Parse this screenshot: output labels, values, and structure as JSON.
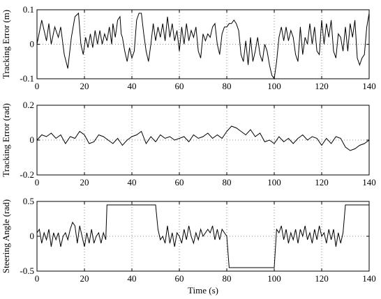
{
  "chart_data": [
    {
      "type": "line",
      "ylabel": "Tracking Error (m)",
      "xlabel": "",
      "xlim": [
        0,
        140
      ],
      "ylim": [
        -0.1,
        0.1
      ],
      "x_ticks": [
        0,
        20,
        40,
        60,
        80,
        100,
        120,
        140
      ],
      "x_tick_labels": [
        "0",
        "20",
        "40",
        "60",
        "80",
        "100",
        "120",
        "140"
      ],
      "y_ticks": [
        -0.1,
        0,
        0.1
      ],
      "y_tick_labels": [
        "-0.1",
        "0",
        "0.1"
      ],
      "grid": "dotted",
      "color": "#000000",
      "series": [
        {
          "x": [
            0,
            2,
            4,
            5,
            6,
            7.5,
            9,
            10,
            11.5,
            13,
            14.5,
            16,
            17.5,
            18.5,
            19.5,
            20.5,
            21.5,
            22.5,
            23.5,
            24.5,
            25.5,
            26.5,
            27.5,
            28.5,
            29.5,
            30.5,
            31.5,
            32,
            33,
            34,
            35,
            35.5,
            36,
            37,
            38,
            39,
            40,
            41,
            42,
            43,
            44,
            45,
            46,
            47,
            48,
            49,
            50,
            51,
            52,
            53,
            54,
            55,
            56,
            57,
            58,
            59,
            60,
            61,
            62,
            63,
            64,
            65,
            66,
            67,
            68,
            69,
            70,
            71,
            72,
            73,
            74,
            75,
            76,
            77,
            78,
            79,
            80,
            81,
            82,
            83,
            84,
            85,
            86,
            87,
            88,
            89,
            90,
            91,
            92,
            93,
            94,
            95,
            96,
            97,
            98,
            99,
            100,
            101,
            102,
            103,
            104,
            105,
            106,
            107,
            108,
            109,
            110,
            111,
            112,
            113,
            114,
            115,
            116,
            117,
            118,
            119,
            120,
            121,
            122,
            123,
            124,
            125,
            126,
            127,
            128,
            129,
            130,
            131,
            132,
            133,
            134,
            135,
            136,
            137,
            138,
            139,
            140
          ],
          "y": [
            0,
            0.07,
            0.01,
            0.06,
            0,
            0.05,
            0.02,
            0.05,
            -0.03,
            -0.07,
            0.02,
            0.08,
            0.09,
            0,
            -0.03,
            0.02,
            -0.01,
            0.03,
            -0.01,
            0.04,
            0,
            0.04,
            0,
            0.03,
            0.01,
            0.05,
            0,
            0.06,
            0.02,
            0.07,
            0.08,
            0.03,
            0.02,
            -0.02,
            -0.05,
            -0.01,
            -0.04,
            -0.02,
            0.07,
            0.09,
            0.09,
            0.03,
            -0.02,
            -0.05,
            0,
            0.06,
            0.01,
            0.05,
            0.02,
            0.06,
            0.01,
            0.08,
            0.02,
            0.06,
            0.01,
            0.04,
            -0.02,
            0.05,
            0,
            0.06,
            0.01,
            0.04,
            0.02,
            0.05,
            -0.02,
            -0.04,
            0.03,
            0.01,
            0.03,
            0.02,
            0.05,
            0.06,
            0,
            -0.03,
            0.03,
            0.05,
            0.05,
            0.06,
            0.06,
            0.07,
            0.06,
            0.04,
            -0.03,
            -0.05,
            0.01,
            -0.06,
            0.02,
            -0.05,
            -0.02,
            0.02,
            -0.03,
            -0.05,
            0,
            -0.02,
            -0.06,
            -0.09,
            -0.1,
            -0.05,
            0.02,
            0.05,
            0.01,
            0.05,
            0.01,
            0.04,
            0.02,
            -0.03,
            -0.05,
            0.05,
            -0.03,
            0.02,
            0,
            0.06,
            0,
            0.05,
            -0.02,
            -0.03,
            0.07,
            0,
            0.06,
            0.02,
            0.07,
            -0.02,
            -0.04,
            0.03,
            0.02,
            -0.02,
            0.05,
            -0.02,
            0.06,
            0.02,
            0.07,
            -0.04,
            -0.06,
            -0.04,
            -0.03,
            0.05,
            0.09
          ]
        }
      ]
    },
    {
      "type": "line",
      "ylabel": "Tracking Error (rad)",
      "xlabel": "",
      "xlim": [
        0,
        140
      ],
      "ylim": [
        -0.2,
        0.2
      ],
      "x_ticks": [
        0,
        20,
        40,
        60,
        80,
        100,
        120,
        140
      ],
      "x_tick_labels": [
        "0",
        "20",
        "40",
        "60",
        "80",
        "100",
        "120",
        "140"
      ],
      "y_ticks": [
        -0.2,
        0,
        0.2
      ],
      "y_tick_labels": [
        "-0.2",
        "0",
        "0.2"
      ],
      "grid": "dotted",
      "color": "#000000",
      "series": [
        {
          "x": [
            0,
            2,
            4,
            6,
            8,
            10,
            12,
            14,
            16,
            18,
            20,
            22,
            24,
            26,
            28,
            30,
            32,
            34,
            36,
            38,
            40,
            42,
            44,
            46,
            48,
            50,
            52,
            54,
            56,
            58,
            60,
            62,
            64,
            66,
            68,
            70,
            72,
            74,
            76,
            78,
            80,
            82,
            84,
            86,
            88,
            90,
            92,
            94,
            96,
            98,
            100,
            102,
            104,
            106,
            108,
            110,
            112,
            114,
            116,
            118,
            120,
            122,
            124,
            126,
            128,
            130,
            132,
            134,
            136,
            138,
            140
          ],
          "y": [
            0,
            0.03,
            0.02,
            0.04,
            0.01,
            0.03,
            -0.02,
            0.02,
            0.01,
            0.05,
            0.03,
            -0.02,
            -0.01,
            0.03,
            0.02,
            0,
            -0.02,
            0.01,
            -0.03,
            0,
            0.02,
            0.03,
            0.05,
            -0.02,
            0.02,
            -0.01,
            0.03,
            0.01,
            0.02,
            0,
            0.01,
            0.02,
            -0.01,
            0.03,
            0.01,
            0.02,
            0.04,
            0.01,
            0.03,
            0.01,
            0.05,
            0.08,
            0.07,
            0.05,
            0.03,
            0.06,
            0.02,
            0.04,
            -0.01,
            0,
            -0.02,
            0.02,
            -0.01,
            0.01,
            -0.02,
            0.01,
            0.03,
            0,
            0.02,
            0.01,
            -0.03,
            0.01,
            -0.02,
            0.02,
            0.01,
            -0.04,
            -0.06,
            -0.05,
            -0.03,
            -0.02,
            0
          ]
        }
      ]
    },
    {
      "type": "line",
      "ylabel": "Steering Angle (rad)",
      "xlabel": "Time (s)",
      "xlim": [
        0,
        140
      ],
      "ylim": [
        -0.5,
        0.5
      ],
      "x_ticks": [
        0,
        20,
        40,
        60,
        80,
        100,
        120,
        140
      ],
      "x_tick_labels": [
        "0",
        "20",
        "40",
        "60",
        "80",
        "100",
        "120",
        "140"
      ],
      "y_ticks": [
        -0.5,
        0,
        0.5
      ],
      "y_tick_labels": [
        "-0.5",
        "0",
        "0.5"
      ],
      "grid": "dotted",
      "color": "#000000",
      "series": [
        {
          "x": [
            0,
            1,
            2,
            3,
            4,
            5,
            6,
            7,
            8,
            9,
            10,
            11,
            12,
            13,
            14,
            15,
            16,
            17,
            18,
            19,
            20,
            21,
            22,
            23,
            24,
            25,
            26,
            27,
            28,
            29,
            29.5,
            30,
            35,
            40,
            45,
            50,
            51,
            52,
            53,
            54,
            55,
            56,
            57,
            58,
            59,
            60,
            61,
            62,
            63,
            64,
            65,
            66,
            67,
            68,
            69,
            70,
            71,
            72,
            73,
            74,
            75,
            76,
            77,
            78,
            79,
            80,
            81,
            85,
            90,
            95,
            100,
            101,
            102,
            103,
            104,
            105,
            106,
            107,
            108,
            109,
            110,
            111,
            112,
            113,
            114,
            115,
            116,
            117,
            118,
            119,
            120,
            121,
            122,
            123,
            124,
            125,
            126,
            127,
            128,
            129,
            130,
            131,
            132,
            140
          ],
          "y": [
            0.05,
            0.1,
            -0.1,
            0.05,
            -0.05,
            0.1,
            -0.15,
            0.05,
            -0.05,
            0.05,
            -0.15,
            0,
            0.05,
            -0.05,
            0.1,
            0.2,
            0.15,
            -0.1,
            0.15,
            0,
            -0.15,
            0.05,
            -0.1,
            0.1,
            -0.1,
            0,
            0.05,
            -0.1,
            0.05,
            -0.05,
            0.45,
            0.45,
            0.45,
            0.45,
            0.45,
            0.45,
            0.1,
            -0.05,
            0,
            -0.1,
            0.15,
            -0.1,
            0.05,
            -0.15,
            0.05,
            0,
            -0.1,
            0.1,
            -0.05,
            0.15,
            0,
            -0.1,
            0.05,
            -0.05,
            0.1,
            0,
            0.05,
            0.1,
            0.05,
            0.15,
            -0.05,
            0.1,
            -0.05,
            0.1,
            0.05,
            0,
            -0.45,
            -0.45,
            -0.45,
            -0.45,
            -0.45,
            0.1,
            0.05,
            0.15,
            -0.05,
            0.1,
            -0.1,
            0.05,
            -0.05,
            0.1,
            -0.1,
            0.1,
            0,
            0.15,
            -0.05,
            0.05,
            -0.1,
            0.1,
            -0.05,
            0.15,
            0,
            0.05,
            -0.1,
            0.1,
            -0.05,
            0.1,
            -0.15,
            0.05,
            -0.1,
            0.05,
            0.45,
            0.45,
            0.45,
            0.45
          ]
        }
      ]
    }
  ]
}
